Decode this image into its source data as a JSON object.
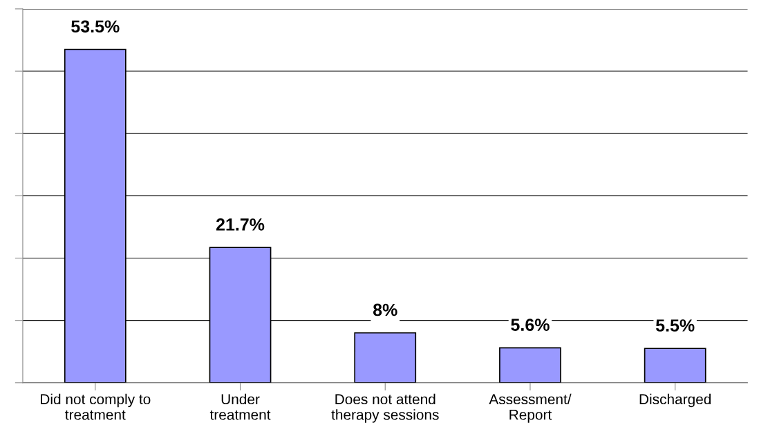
{
  "chart_data": {
    "type": "bar",
    "categories": [
      "Did not comply to\ntreatment",
      "Under\ntreatment",
      "Does not attend\ntherapy sessions",
      "Assessment/\nReport",
      "Discharged"
    ],
    "values": [
      53.5,
      21.7,
      8,
      5.6,
      5.5
    ],
    "value_labels": [
      "53.5%",
      "21.7%",
      "8%",
      "5.6%",
      "5.5%"
    ],
    "color": "#9999ff",
    "ylim": [
      0,
      60
    ],
    "yticks": [
      {
        "value": 0,
        "label": null
      },
      {
        "value": 10,
        "label": null
      },
      {
        "value": 20,
        "label": null
      },
      {
        "value": 30,
        "label": null
      },
      {
        "value": 40,
        "label": null
      },
      {
        "value": 50,
        "label": null
      },
      {
        "value": 60,
        "label": null
      }
    ],
    "grid": "y",
    "legend": false
  }
}
